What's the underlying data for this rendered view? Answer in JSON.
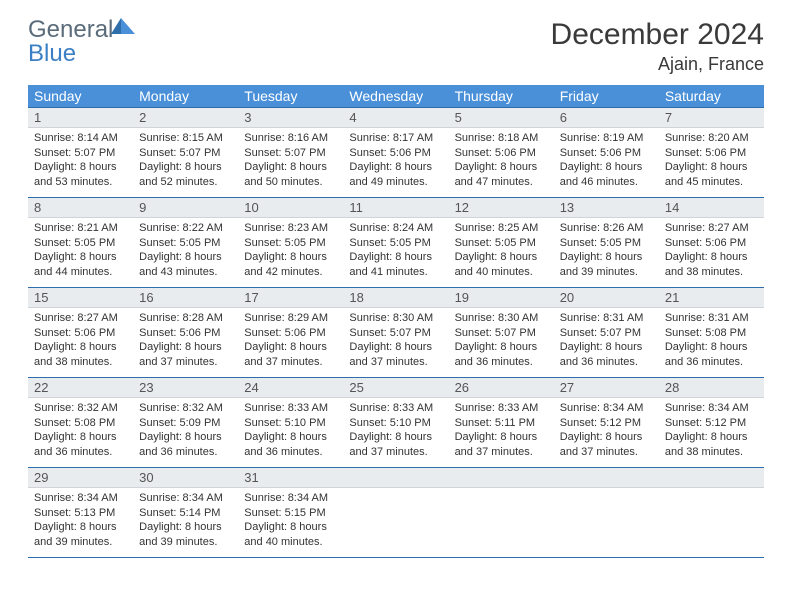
{
  "logo": {
    "text1": "General",
    "text2": "Blue"
  },
  "title": "December 2024",
  "location": "Ajain, France",
  "weekdays": [
    "Sunday",
    "Monday",
    "Tuesday",
    "Wednesday",
    "Thursday",
    "Friday",
    "Saturday"
  ],
  "colors": {
    "header_bg": "#4a90d9",
    "header_text": "#ffffff",
    "row_border": "#2e6fab",
    "daynum_bg": "#e9ecef",
    "body_text": "#333333",
    "logo_gray": "#5a6b7a",
    "logo_blue": "#3b7fc4"
  },
  "days": [
    {
      "n": "1",
      "sr": "8:14 AM",
      "ss": "5:07 PM",
      "dl": "8 hours and 53 minutes."
    },
    {
      "n": "2",
      "sr": "8:15 AM",
      "ss": "5:07 PM",
      "dl": "8 hours and 52 minutes."
    },
    {
      "n": "3",
      "sr": "8:16 AM",
      "ss": "5:07 PM",
      "dl": "8 hours and 50 minutes."
    },
    {
      "n": "4",
      "sr": "8:17 AM",
      "ss": "5:06 PM",
      "dl": "8 hours and 49 minutes."
    },
    {
      "n": "5",
      "sr": "8:18 AM",
      "ss": "5:06 PM",
      "dl": "8 hours and 47 minutes."
    },
    {
      "n": "6",
      "sr": "8:19 AM",
      "ss": "5:06 PM",
      "dl": "8 hours and 46 minutes."
    },
    {
      "n": "7",
      "sr": "8:20 AM",
      "ss": "5:06 PM",
      "dl": "8 hours and 45 minutes."
    },
    {
      "n": "8",
      "sr": "8:21 AM",
      "ss": "5:05 PM",
      "dl": "8 hours and 44 minutes."
    },
    {
      "n": "9",
      "sr": "8:22 AM",
      "ss": "5:05 PM",
      "dl": "8 hours and 43 minutes."
    },
    {
      "n": "10",
      "sr": "8:23 AM",
      "ss": "5:05 PM",
      "dl": "8 hours and 42 minutes."
    },
    {
      "n": "11",
      "sr": "8:24 AM",
      "ss": "5:05 PM",
      "dl": "8 hours and 41 minutes."
    },
    {
      "n": "12",
      "sr": "8:25 AM",
      "ss": "5:05 PM",
      "dl": "8 hours and 40 minutes."
    },
    {
      "n": "13",
      "sr": "8:26 AM",
      "ss": "5:05 PM",
      "dl": "8 hours and 39 minutes."
    },
    {
      "n": "14",
      "sr": "8:27 AM",
      "ss": "5:06 PM",
      "dl": "8 hours and 38 minutes."
    },
    {
      "n": "15",
      "sr": "8:27 AM",
      "ss": "5:06 PM",
      "dl": "8 hours and 38 minutes."
    },
    {
      "n": "16",
      "sr": "8:28 AM",
      "ss": "5:06 PM",
      "dl": "8 hours and 37 minutes."
    },
    {
      "n": "17",
      "sr": "8:29 AM",
      "ss": "5:06 PM",
      "dl": "8 hours and 37 minutes."
    },
    {
      "n": "18",
      "sr": "8:30 AM",
      "ss": "5:07 PM",
      "dl": "8 hours and 37 minutes."
    },
    {
      "n": "19",
      "sr": "8:30 AM",
      "ss": "5:07 PM",
      "dl": "8 hours and 36 minutes."
    },
    {
      "n": "20",
      "sr": "8:31 AM",
      "ss": "5:07 PM",
      "dl": "8 hours and 36 minutes."
    },
    {
      "n": "21",
      "sr": "8:31 AM",
      "ss": "5:08 PM",
      "dl": "8 hours and 36 minutes."
    },
    {
      "n": "22",
      "sr": "8:32 AM",
      "ss": "5:08 PM",
      "dl": "8 hours and 36 minutes."
    },
    {
      "n": "23",
      "sr": "8:32 AM",
      "ss": "5:09 PM",
      "dl": "8 hours and 36 minutes."
    },
    {
      "n": "24",
      "sr": "8:33 AM",
      "ss": "5:10 PM",
      "dl": "8 hours and 36 minutes."
    },
    {
      "n": "25",
      "sr": "8:33 AM",
      "ss": "5:10 PM",
      "dl": "8 hours and 37 minutes."
    },
    {
      "n": "26",
      "sr": "8:33 AM",
      "ss": "5:11 PM",
      "dl": "8 hours and 37 minutes."
    },
    {
      "n": "27",
      "sr": "8:34 AM",
      "ss": "5:12 PM",
      "dl": "8 hours and 37 minutes."
    },
    {
      "n": "28",
      "sr": "8:34 AM",
      "ss": "5:12 PM",
      "dl": "8 hours and 38 minutes."
    },
    {
      "n": "29",
      "sr": "8:34 AM",
      "ss": "5:13 PM",
      "dl": "8 hours and 39 minutes."
    },
    {
      "n": "30",
      "sr": "8:34 AM",
      "ss": "5:14 PM",
      "dl": "8 hours and 39 minutes."
    },
    {
      "n": "31",
      "sr": "8:34 AM",
      "ss": "5:15 PM",
      "dl": "8 hours and 40 minutes."
    }
  ],
  "labels": {
    "sunrise": "Sunrise: ",
    "sunset": "Sunset: ",
    "daylight": "Daylight: "
  },
  "trailing_empty": 4
}
